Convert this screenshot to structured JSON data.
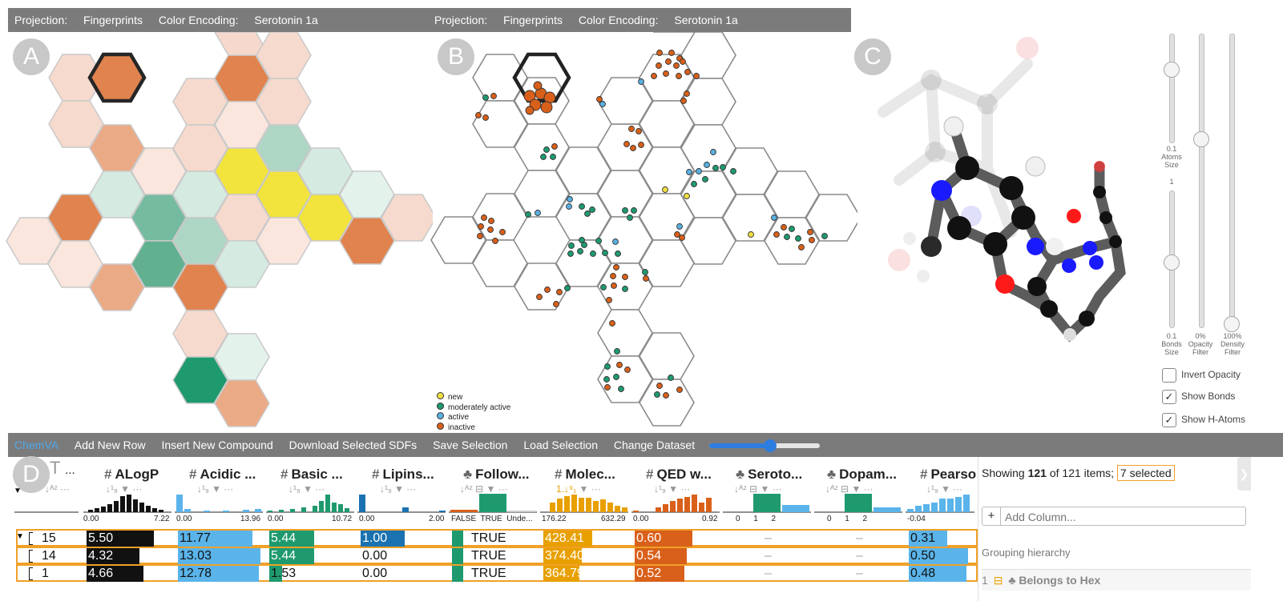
{
  "panel_a": {
    "letter": "A",
    "projection_label": "Projection:",
    "projection_value": "Fingerprints",
    "color_label": "Color Encoding:",
    "color_value": "Serotonin 1a"
  },
  "panel_b": {
    "letter": "B",
    "projection_label": "Projection:",
    "projection_value": "Fingerprints",
    "color_label": "Color Encoding:",
    "color_value": "Serotonin 1a",
    "legend": [
      {
        "label": "new",
        "color": "#f0e040"
      },
      {
        "label": "moderately active",
        "color": "#1e9a6e"
      },
      {
        "label": "active",
        "color": "#5ab0e0"
      },
      {
        "label": "inactive",
        "color": "#d9601a"
      }
    ]
  },
  "panel_c": {
    "letter": "C",
    "sliders": [
      {
        "label_top": "0.1",
        "label_bottom_1": "Atoms",
        "label_bottom_2": "Size",
        "value": 0.1
      },
      {
        "label_top": "1",
        "label_bottom_1": "0.1",
        "label_bottom_2": "Bonds",
        "label_bottom_3": "Size",
        "value": 0.1
      },
      {
        "label_bottom_1": "0%",
        "label_bottom_2": "Opacity",
        "label_bottom_3": "Filter",
        "value": 0
      },
      {
        "label_bottom_1": "100%",
        "label_bottom_2": "Density",
        "label_bottom_3": "Filter",
        "value": 1.0
      }
    ],
    "checkboxes": [
      {
        "label": "Invert Opacity",
        "checked": false
      },
      {
        "label": "Show Bonds",
        "checked": true
      },
      {
        "label": "Show H-Atoms",
        "checked": true
      }
    ]
  },
  "toolbar": {
    "brand": "ChemVA",
    "items": [
      "Add New Row",
      "Insert New Compound",
      "Download Selected SDFs",
      "Save Selection",
      "Load Selection",
      "Change Dataset"
    ],
    "brand_color": "#4fa8e8"
  },
  "panel_d": {
    "letter": "D",
    "columns": [
      {
        "type_icon": "T",
        "name": "...",
        "min": "",
        "max": ""
      },
      {
        "type_icon": "#",
        "name": "ALogP",
        "min": "0.00",
        "max": "7.22"
      },
      {
        "type_icon": "#",
        "name": "Acidic ...",
        "min": "0.00",
        "max": "13.96"
      },
      {
        "type_icon": "#",
        "name": "Basic ...",
        "min": "0.00",
        "max": "10.72"
      },
      {
        "type_icon": "#",
        "name": "Lipins...",
        "min": "0.00",
        "max": "2.00"
      },
      {
        "type_icon": "♣",
        "name": "Follow...",
        "min": "FALSE  TRUE  Unde...",
        "max": ""
      },
      {
        "type_icon": "#",
        "name": "Molec...",
        "min": "176.22",
        "max": "632.29"
      },
      {
        "type_icon": "#",
        "name": "QED w...",
        "min": "0.00",
        "max": "0.92"
      },
      {
        "type_icon": "♣",
        "name": "Seroto...",
        "min": "0      1      2",
        "max": ""
      },
      {
        "type_icon": "♣",
        "name": "Dopam...",
        "min": "0      1      2",
        "max": ""
      },
      {
        "type_icon": "#",
        "name": "Pearso",
        "min": "-0.04",
        "max": ""
      }
    ],
    "rows": [
      {
        "id": "15",
        "alogp": "5.50",
        "acidic": "11.77",
        "basic": "5.44",
        "lipins": "1.00",
        "follow": "TRUE",
        "molec": "428.41",
        "qed": "0.60",
        "sero": "–",
        "dopam": "–",
        "pearson": "0.31"
      },
      {
        "id": "14",
        "alogp": "4.32",
        "acidic": "13.03",
        "basic": "5.44",
        "lipins": "0.00",
        "follow": "TRUE",
        "molec": "374.40",
        "qed": "0.54",
        "sero": "–",
        "dopam": "–",
        "pearson": "0.50"
      },
      {
        "id": "1",
        "alogp": "4.66",
        "acidic": "12.78",
        "basic": "1.53",
        "lipins": "0.00",
        "follow": "TRUE",
        "molec": "364.79",
        "qed": "0.52",
        "sero": "–",
        "dopam": "–",
        "pearson": "0.48"
      }
    ]
  },
  "side_panel": {
    "showing_prefix": "Showing",
    "shown_count": "121",
    "of_text": "of 121 items;",
    "selected_text": "7 selected",
    "add_column_placeholder": "Add Column...",
    "grouping_title": "Grouping hierarchy",
    "grouping_item_index": "1",
    "grouping_item_label": "Belongs to Hex"
  }
}
